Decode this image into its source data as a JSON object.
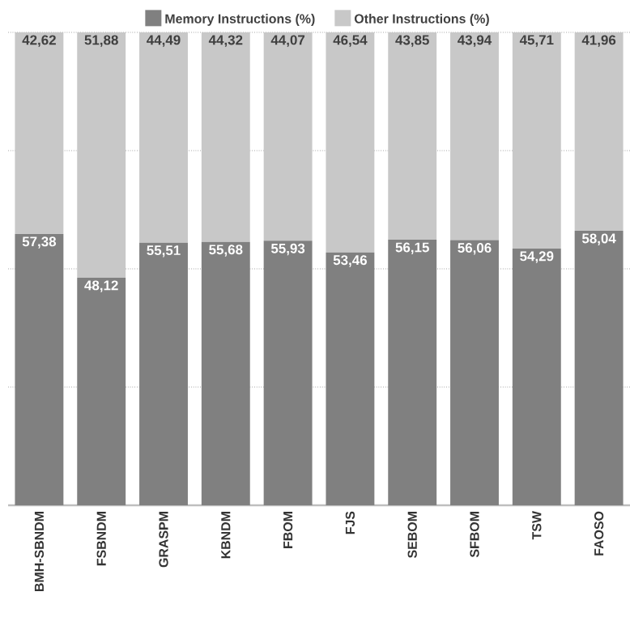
{
  "chart_data": {
    "type": "bar",
    "stacked": true,
    "categories": [
      "BMH-SBNDM",
      "FSBNDM",
      "GRASPM",
      "KBNDM",
      "FBOM",
      "FJS",
      "SEBOM",
      "SFBOM",
      "TSW",
      "FAOSO"
    ],
    "series": [
      {
        "name": "Memory Instructions (%)",
        "color": "#808080",
        "values": [
          57.38,
          48.12,
          55.51,
          55.68,
          55.93,
          53.46,
          56.15,
          56.06,
          54.29,
          58.04
        ],
        "value_labels": [
          "57,38",
          "48,12",
          "55,51",
          "55,68",
          "55,93",
          "53,46",
          "56,15",
          "56,06",
          "54,29",
          "58,04"
        ]
      },
      {
        "name": "Other Instructions (%)",
        "color": "#c8c8c8",
        "values": [
          42.62,
          51.88,
          44.49,
          44.32,
          44.07,
          46.54,
          43.85,
          43.94,
          45.71,
          41.96
        ],
        "value_labels": [
          "42,62",
          "51,88",
          "44,49",
          "44,32",
          "44,07",
          "46,54",
          "43,85",
          "43,94",
          "45,71",
          "41,96"
        ]
      }
    ],
    "ylim": [
      0,
      100
    ],
    "yticks": [
      {
        "value": 0,
        "label": null
      },
      {
        "value": 25,
        "label": null
      },
      {
        "value": 50,
        "label": null
      },
      {
        "value": 75,
        "label": null
      },
      {
        "value": 100,
        "label": null
      }
    ],
    "tick_labels": "x",
    "grid": "y",
    "legend": "top"
  }
}
